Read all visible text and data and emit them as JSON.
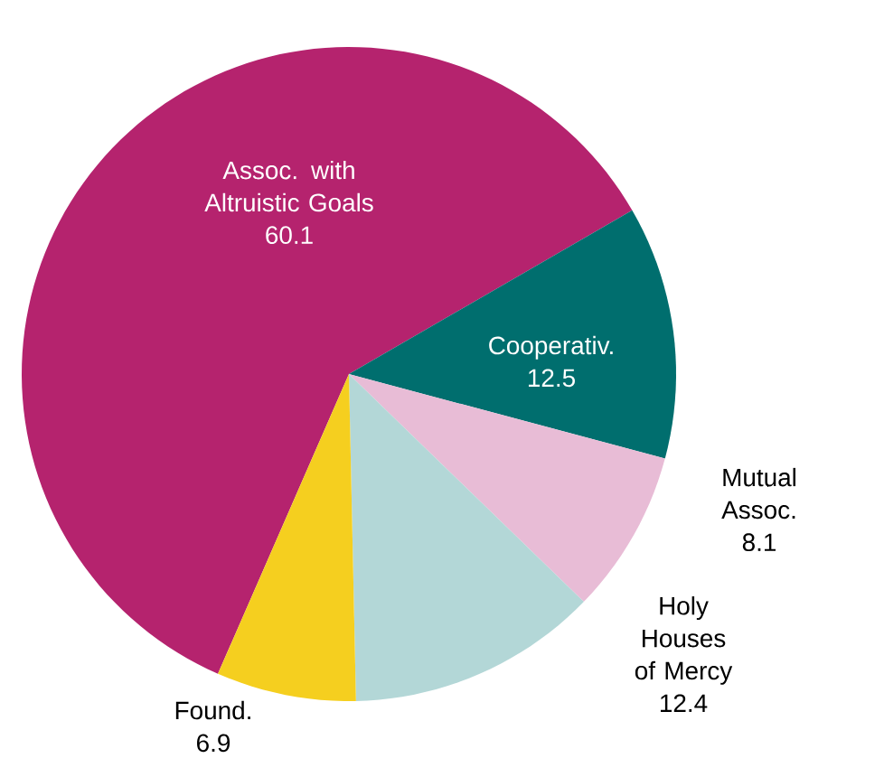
{
  "chart_data": {
    "type": "pie",
    "categories": [
      "Assoc. with Altruistic Goals",
      "Cooperativ.",
      "Mutual Assoc.",
      "Holy Houses of Mercy",
      "Found."
    ],
    "values": [
      60.1,
      12.5,
      8.1,
      12.4,
      6.9
    ],
    "colors": [
      "#b5236e",
      "#006e6e",
      "#e8bcd6",
      "#b3d7d7",
      "#f5cf1f"
    ],
    "data_labels": true
  }
}
